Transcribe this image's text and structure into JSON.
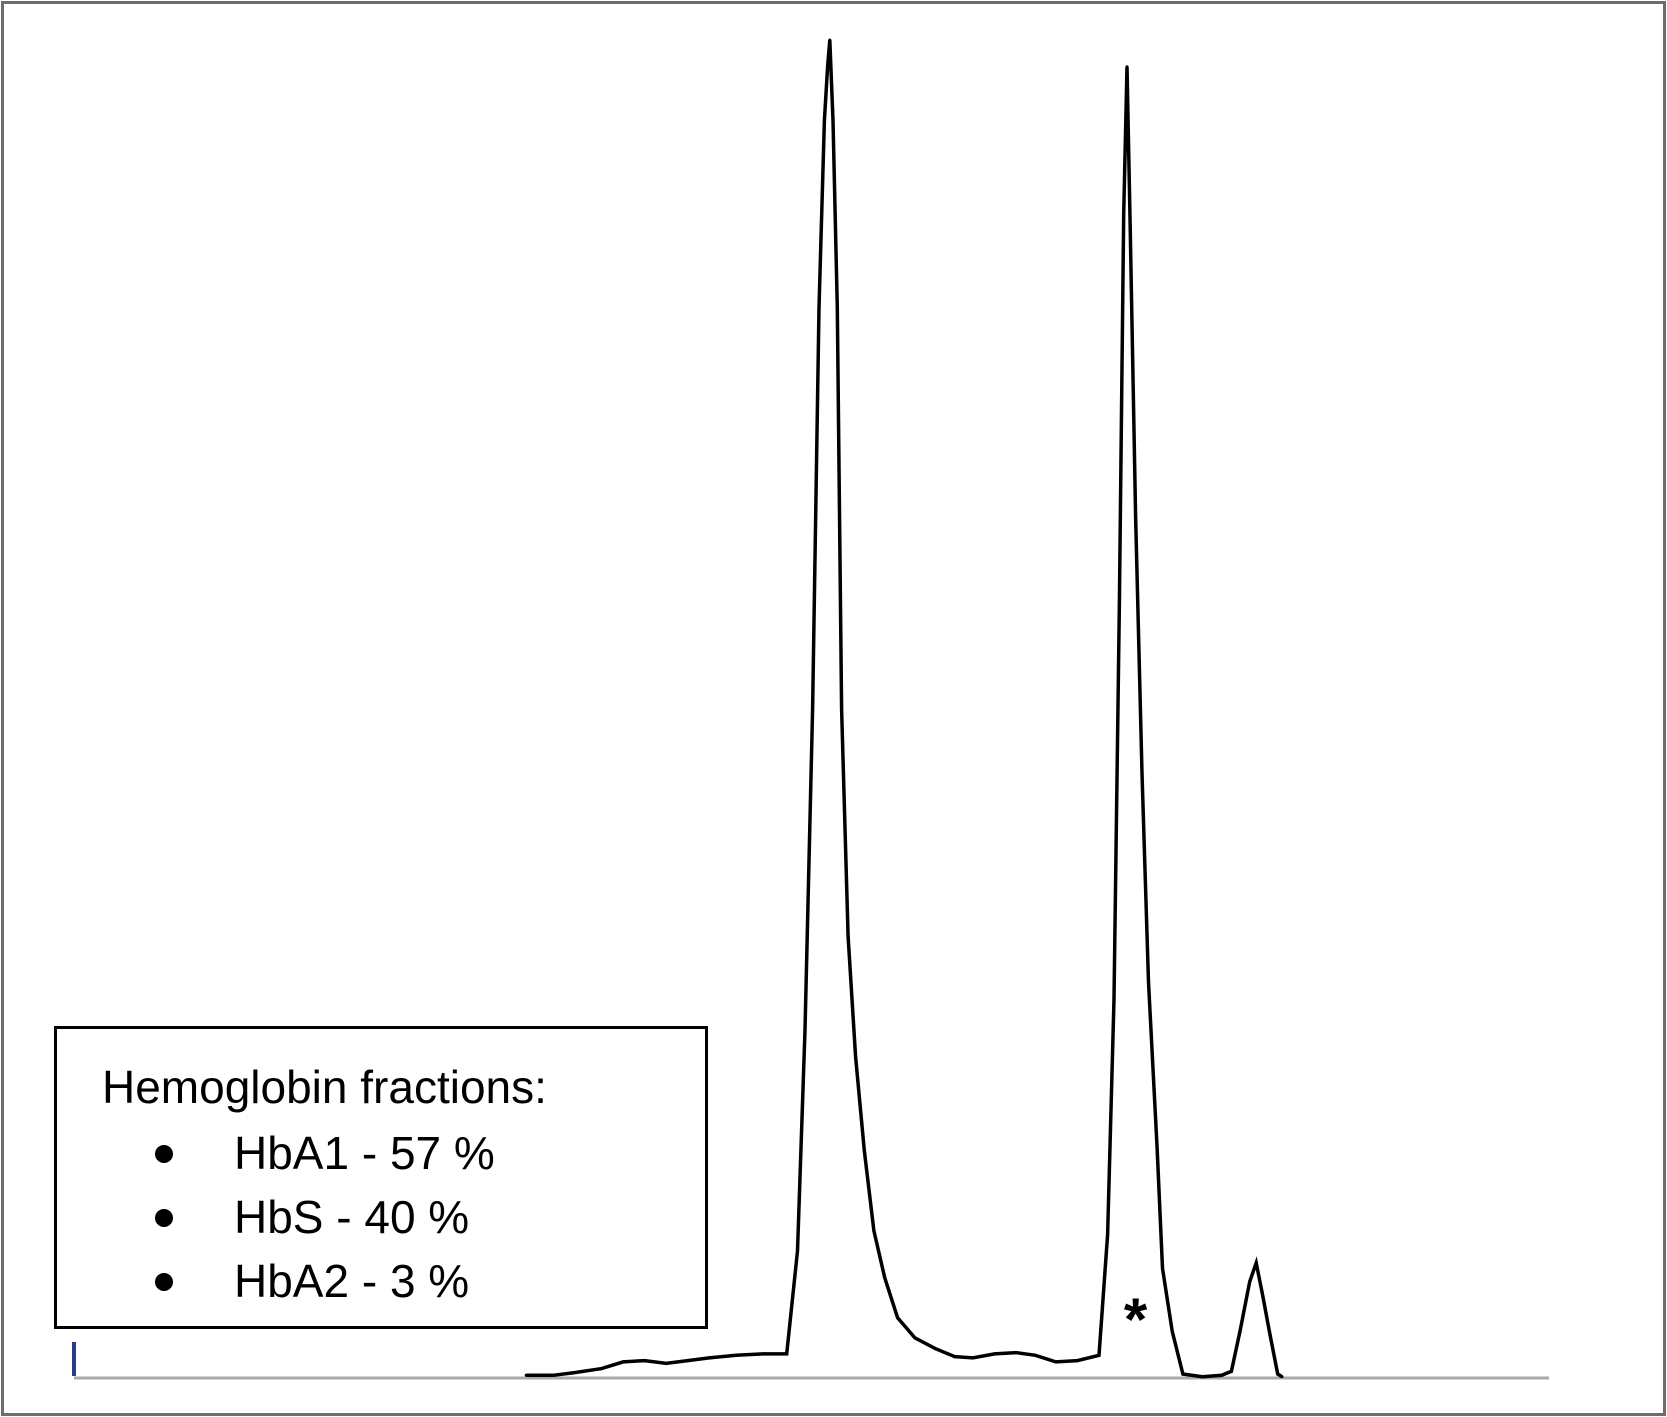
{
  "chart_data": {
    "type": "line",
    "title": "",
    "xlabel": "",
    "ylabel": "",
    "grid": false,
    "series": [
      {
        "points": [
          [
            420,
            0.002
          ],
          [
            445,
            0.002
          ],
          [
            465,
            0.004
          ],
          [
            490,
            0.007
          ],
          [
            510,
            0.012
          ],
          [
            530,
            0.013
          ],
          [
            550,
            0.011
          ],
          [
            570,
            0.013
          ],
          [
            590,
            0.015
          ],
          [
            615,
            0.017
          ],
          [
            640,
            0.018
          ],
          [
            662,
            0.018
          ],
          [
            672,
            0.095
          ],
          [
            679,
            0.26
          ],
          [
            686,
            0.5
          ],
          [
            692,
            0.8
          ],
          [
            697,
            0.94
          ],
          [
            700,
            0.98
          ],
          [
            702,
            1.0
          ],
          [
            705,
            0.94
          ],
          [
            709,
            0.8
          ],
          [
            713,
            0.5
          ],
          [
            719,
            0.33
          ],
          [
            726,
            0.24
          ],
          [
            734,
            0.17
          ],
          [
            743,
            0.11
          ],
          [
            753,
            0.075
          ],
          [
            765,
            0.045
          ],
          [
            781,
            0.03
          ],
          [
            800,
            0.022
          ],
          [
            818,
            0.016
          ],
          [
            835,
            0.015
          ],
          [
            855,
            0.018
          ],
          [
            875,
            0.019
          ],
          [
            893,
            0.017
          ],
          [
            912,
            0.012
          ],
          [
            932,
            0.013
          ],
          [
            952,
            0.017
          ],
          [
            960,
            0.107
          ],
          [
            966,
            0.283
          ],
          [
            971,
            0.58
          ],
          [
            975,
            0.87
          ],
          [
            978,
            0.98
          ],
          [
            981,
            0.86
          ],
          [
            986,
            0.644
          ],
          [
            992,
            0.452
          ],
          [
            998,
            0.296
          ],
          [
            1006,
            0.172
          ],
          [
            1011,
            0.082
          ],
          [
            1020,
            0.035
          ],
          [
            1030,
            0.003
          ],
          [
            1048,
            0.001
          ],
          [
            1066,
            0.002
          ],
          [
            1075,
            0.005
          ],
          [
            1083,
            0.035
          ],
          [
            1092,
            0.072
          ],
          [
            1098,
            0.086
          ],
          [
            1104,
            0.062
          ],
          [
            1111,
            0.032
          ],
          [
            1118,
            0.003
          ],
          [
            1122,
            0.001
          ]
        ]
      }
    ],
    "annotations": [
      {
        "text": "*",
        "x": 986,
        "y": 0.045
      }
    ],
    "legend": {
      "position": "bottom-left",
      "title": "Hemoglobin fractions:",
      "items": [
        "HbA1 - 57 %",
        "HbS - 40 %",
        "HbA2 - 3 %"
      ]
    },
    "xlim": [
      0,
      1370
    ],
    "ylim": [
      0,
      1
    ],
    "colors": {
      "trace": "#000000",
      "baseline": "#a9a9a9",
      "origin_marker": "#2c3a8c",
      "frame": "#6d6d6d"
    }
  }
}
